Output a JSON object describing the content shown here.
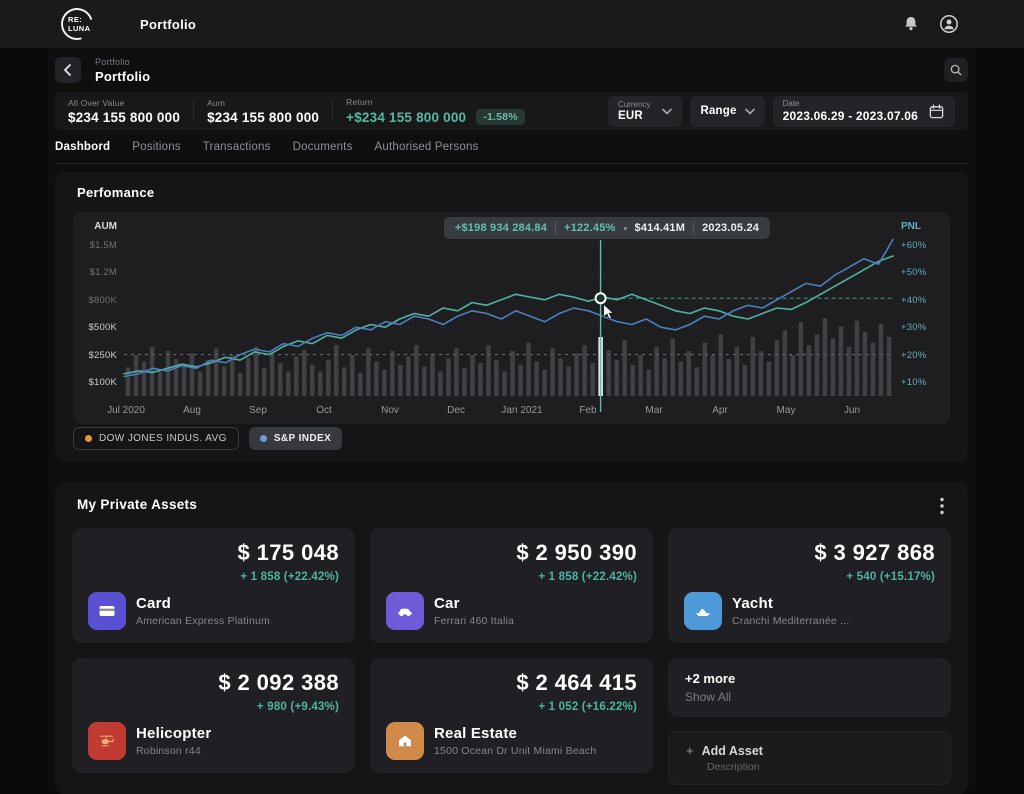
{
  "topbar": {
    "logo_top": "RE:",
    "logo_bottom": "LUNA",
    "title": "Portfolio"
  },
  "breadcrumb": {
    "parent": "Portfolio",
    "current": "Portfolio"
  },
  "stats": {
    "all_over": {
      "label": "All Over Value",
      "value": "$234 155 800 000"
    },
    "aum": {
      "label": "Aum",
      "value": "$234 155 800 000"
    },
    "return": {
      "label": "Return",
      "value": "+$234 155 800 000",
      "badge": "-1.58%"
    },
    "currency": {
      "label": "Currency",
      "value": "EUR"
    },
    "range_label": "Range",
    "date": {
      "label": "Date",
      "value": "2023.06.29 - 2023.07.06"
    }
  },
  "tabs": {
    "dashboard": "Dashbord",
    "positions": "Positions",
    "transactions": "Transactions",
    "documents": "Documents",
    "authorised": "Authorised Persons"
  },
  "performance": {
    "title": "Perfomance",
    "tooltip": {
      "amount": "+$198 934 284.84",
      "percent": "+122.45%",
      "aum": "$414.41M",
      "date": "2023.05.24"
    },
    "legend": {
      "dow": {
        "label": "DOW JONES INDUS. AVG",
        "dot": "#e09a3f"
      },
      "sp": {
        "label": "S&P INDEX",
        "dot": "#6b9ae0"
      }
    }
  },
  "chart_data": {
    "type": "line",
    "title": "Perfomance",
    "left_axis": {
      "label": "AUM",
      "ticks": [
        "$1.5M",
        "$1.2M",
        "$800K",
        "$500K",
        "$250K",
        "$100K"
      ]
    },
    "right_axis": {
      "label": "PNL",
      "ticks": [
        "+60%",
        "+50%",
        "+40%",
        "+30%",
        "+20%",
        "+10%"
      ],
      "min_pct": 10,
      "max_pct": 60
    },
    "x_ticks": [
      "Jul 2020",
      "Aug",
      "Sep",
      "Oct",
      "Nov",
      "Dec",
      "Jan 2021",
      "Feb",
      "Mar",
      "Apr",
      "May",
      "Jun"
    ],
    "grid": "dotted-horizontal",
    "legend_position": "bottom-left",
    "series": [
      {
        "name": "DOW JONES INDUS. AVG",
        "color": "#4fb3a1",
        "values": [
          13,
          14,
          13.5,
          15,
          16.5,
          15.5,
          17,
          19,
          18,
          21,
          20,
          23,
          25,
          24,
          27,
          26,
          29,
          31,
          30,
          33,
          35,
          34,
          37,
          36,
          39,
          38,
          40,
          42,
          41,
          40,
          42,
          41,
          39.5,
          41,
          40,
          42,
          40,
          38,
          36,
          35,
          37,
          36,
          34,
          33,
          35,
          37,
          36.5,
          39,
          42,
          45,
          48,
          51,
          54,
          56
        ]
      },
      {
        "name": "S&P INDEX",
        "color": "#4b7fc0",
        "values": [
          12,
          13,
          15,
          14,
          16,
          15,
          18,
          17,
          20,
          22,
          21,
          24,
          23,
          26,
          28,
          27,
          30,
          29,
          32,
          31,
          34,
          33,
          31,
          34,
          36,
          35,
          33,
          36,
          34,
          32,
          35,
          37,
          36,
          34,
          32,
          31,
          33,
          30,
          29,
          31,
          34,
          33,
          36,
          38,
          37,
          40,
          43,
          46,
          45,
          49,
          52,
          55,
          53,
          62
        ]
      }
    ],
    "volume_bars": [
      0.35,
      0.5,
      0.42,
      0.6,
      0.3,
      0.55,
      0.45,
      0.38,
      0.52,
      0.3,
      0.44,
      0.58,
      0.36,
      0.5,
      0.28,
      0.46,
      0.6,
      0.34,
      0.52,
      0.4,
      0.3,
      0.48,
      0.56,
      0.38,
      0.3,
      0.44,
      0.62,
      0.35,
      0.5,
      0.28,
      0.58,
      0.42,
      0.32,
      0.55,
      0.38,
      0.48,
      0.62,
      0.36,
      0.52,
      0.3,
      0.46,
      0.58,
      0.34,
      0.5,
      0.4,
      0.62,
      0.44,
      0.3,
      0.55,
      0.38,
      0.65,
      0.42,
      0.32,
      0.58,
      0.46,
      0.36,
      0.52,
      0.62,
      0.4,
      0.72,
      0.56,
      0.44,
      0.68,
      0.38,
      0.5,
      0.32,
      0.6,
      0.46,
      0.7,
      0.42,
      0.55,
      0.35,
      0.65,
      0.5,
      0.75,
      0.45,
      0.6,
      0.38,
      0.72,
      0.55,
      0.42,
      0.68,
      0.8,
      0.5,
      0.9,
      0.62,
      0.75,
      0.95,
      0.7,
      0.85,
      0.6,
      0.92,
      0.78,
      0.65,
      0.88,
      0.72
    ],
    "crosshair": {
      "x_frac": 0.616,
      "pnl_value": 40.6,
      "highlighted_bar": 59
    },
    "colors": {
      "bars": "#56565c",
      "highlight": "#e9e9ea",
      "crosshair": "#58c0ae",
      "grid": "#2e2e31",
      "ref_dash": "#717176",
      "teal_dash": "#4fb3a1"
    }
  },
  "assets": {
    "title": "My Private Assets",
    "cards": [
      {
        "value": "$ 175 048",
        "change": "+ 1 858 (+22.42%)",
        "title": "Card",
        "subtitle": "American Express Platinum",
        "icon": "card-icon",
        "icon_color": "#5a50d2"
      },
      {
        "value": "$ 2 950 390",
        "change": "+ 1 858 (+22.42%)",
        "title": "Car",
        "subtitle": "Ferrari 460 Italia",
        "icon": "car-icon",
        "icon_color": "#6f5bd8"
      },
      {
        "value": "$ 3 927 868",
        "change": "+ 540 (+15.17%)",
        "title": "Yacht",
        "subtitle": "Cranchi Mediterranée ...",
        "icon": "yacht-icon",
        "icon_color": "#4e9ad8"
      },
      {
        "value": "$ 2 092 388",
        "change": "+ 980 (+9.43%)",
        "title": "Helicopter",
        "subtitle": "Robinson r44",
        "icon": "helicopter-icon",
        "icon_color": "#c23b32"
      },
      {
        "value": "$ 2 464 415",
        "change": "+ 1 052 (+16.22%)",
        "title": "Real Estate",
        "subtitle": "1500 Ocean Dr Unit Miami Beach",
        "icon": "real-estate-icon",
        "icon_color": "#d28a4b"
      }
    ],
    "more": {
      "title": "+2 more",
      "action": "Show All"
    },
    "add": {
      "plus": "+",
      "label": "Add Asset",
      "description": "Description"
    }
  }
}
